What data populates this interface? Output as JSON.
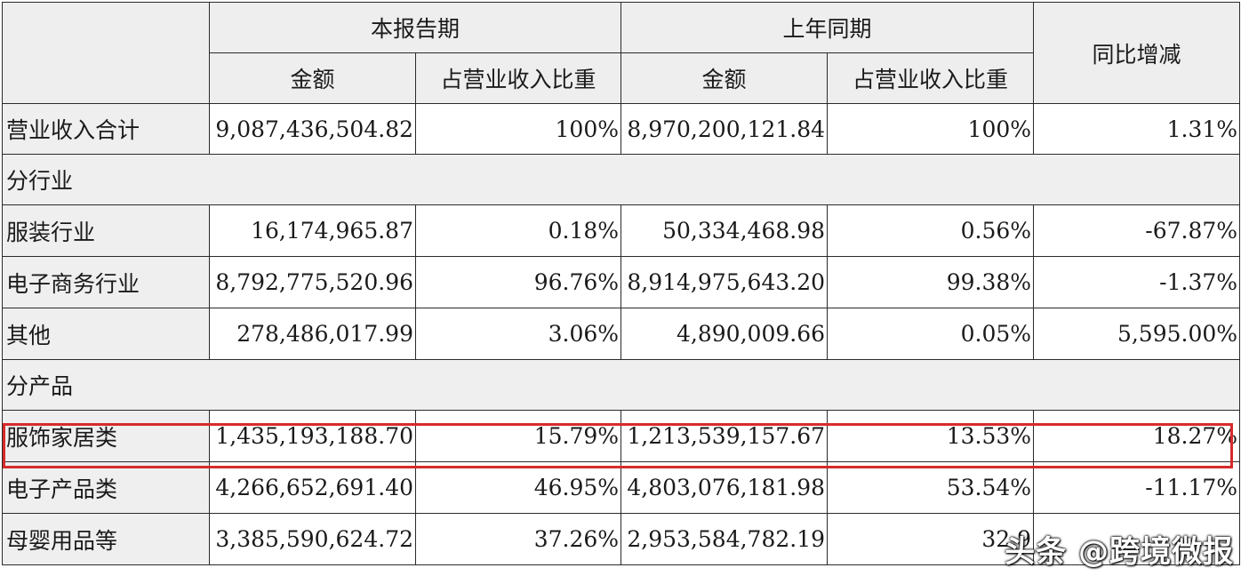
{
  "header": {
    "current_period": "本报告期",
    "prior_period": "上年同期",
    "yoy_change": "同比增减",
    "amount_current": "金额",
    "ratio_current": "占营业收入比重",
    "amount_prior": "金额",
    "ratio_prior": "占营业收入比重"
  },
  "total": {
    "label": "营业收入合计",
    "amount_current": "9,087,436,504.82",
    "ratio_current": "100%",
    "amount_prior": "8,970,200,121.84",
    "ratio_prior": "100%",
    "yoy": "1.31%"
  },
  "section_industry": "分行业",
  "industry_rows": [
    {
      "label": "服装行业",
      "amount_current": "16,174,965.87",
      "ratio_current": "0.18%",
      "amount_prior": "50,334,468.98",
      "ratio_prior": "0.56%",
      "yoy": "-67.87%"
    },
    {
      "label": "电子商务行业",
      "amount_current": "8,792,775,520.96",
      "ratio_current": "96.76%",
      "amount_prior": "8,914,975,643.20",
      "ratio_prior": "99.38%",
      "yoy": "-1.37%"
    },
    {
      "label": "其他",
      "amount_current": "278,486,017.99",
      "ratio_current": "3.06%",
      "amount_prior": "4,890,009.66",
      "ratio_prior": "0.05%",
      "yoy": "5,595.00%"
    }
  ],
  "section_product": "分产品",
  "product_rows": [
    {
      "label": "服饰家居类",
      "amount_current": "1,435,193,188.70",
      "ratio_current": "15.79%",
      "amount_prior": "1,213,539,157.67",
      "ratio_prior": "13.53%",
      "yoy": "18.27%"
    },
    {
      "label": "电子产品类",
      "amount_current": "4,266,652,691.40",
      "ratio_current": "46.95%",
      "amount_prior": "4,803,076,181.98",
      "ratio_prior": "53.54%",
      "yoy": "-11.17%"
    },
    {
      "label": "母婴用品等",
      "amount_current": "3,385,590,624.72",
      "ratio_current": "37.26%",
      "amount_prior": "2,953,584,782.19",
      "ratio_prior": "32.9",
      "yoy": ""
    }
  ],
  "watermark": "头条 @跨境微报",
  "highlight_color": "#d72b2b"
}
